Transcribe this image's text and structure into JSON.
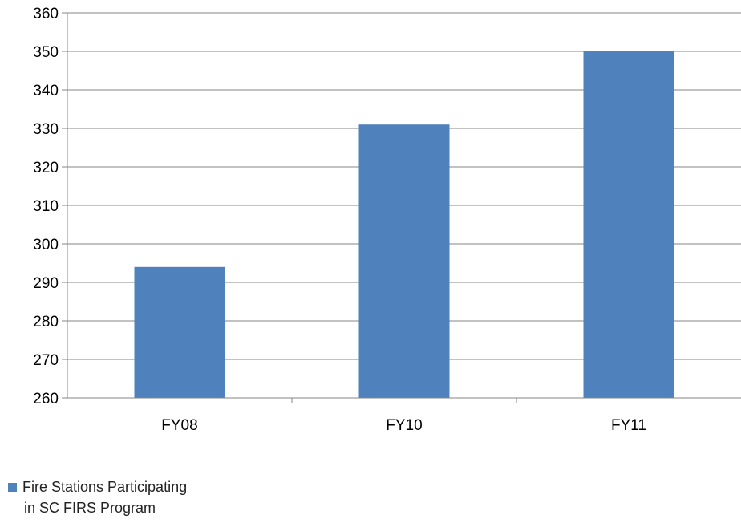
{
  "chart_data": {
    "type": "bar",
    "categories": [
      "FY08",
      "FY10",
      "FY11"
    ],
    "series": [
      {
        "name": "Fire Stations Participating in SC FIRS Program",
        "values": [
          294,
          331,
          350
        ],
        "color": "#4F81BD"
      }
    ],
    "ylim": [
      260,
      360
    ],
    "yticks": [
      260,
      270,
      280,
      290,
      300,
      310,
      320,
      330,
      340,
      350,
      360
    ],
    "grid": true,
    "legend_position": "bottom-left"
  },
  "legend": {
    "line1": "Fire Stations Participating",
    "line2": "in SC FIRS Program"
  }
}
